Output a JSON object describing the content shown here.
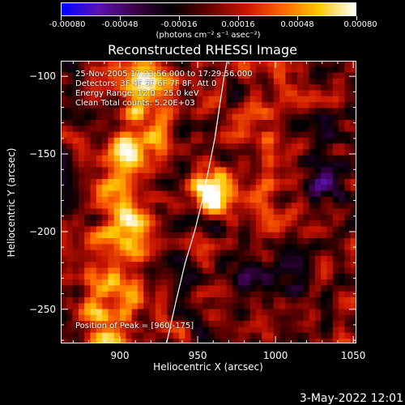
{
  "colorbar": {
    "ticks": [
      "-0.00080",
      "-0.00048",
      "-0.00016",
      "0.00016",
      "0.00048",
      "0.00080"
    ],
    "units": "(photons cm⁻² s⁻¹ asec⁻²)"
  },
  "info": {
    "time": "25-Nov-2005 17:23:56.000 to 17:29:56.000",
    "detectors": "Detectors: 3F 4F 5F 6F 7F 8F, Att 0",
    "energy": "Energy Range: 12.0 - 25.0 keV",
    "clean": "Clean     Total counts: 5.20E+03",
    "peak": "Position of Peak = [960,-175]"
  },
  "timestamp": "3-May-2022 12:01",
  "chart_data": {
    "type": "heatmap",
    "title": "Reconstructed RHESSI Image",
    "xlabel": "Heliocentric X (arcsec)",
    "ylabel": "Heliocentric Y (arcsec)",
    "xlim": [
      862,
      1052
    ],
    "ylim": [
      -272,
      -90
    ],
    "xticks": [
      900,
      950,
      1000,
      1050
    ],
    "yticks": [
      -100,
      -150,
      -200,
      -250
    ],
    "colorbar_range": [
      -0.0008,
      0.0008
    ],
    "colormap": [
      "#0000ff",
      "#5a12b4",
      "#3c0046",
      "#000000",
      "#640000",
      "#c81400",
      "#ff6400",
      "#ffc800",
      "#ffffff"
    ],
    "peak": [
      960,
      -175
    ],
    "limb_curve": [
      [
        930,
        -272
      ],
      [
        936,
        -245
      ],
      [
        942,
        -220
      ],
      [
        948,
        -200
      ],
      [
        953,
        -180
      ],
      [
        957,
        -160
      ],
      [
        961,
        -140
      ],
      [
        964,
        -120
      ],
      [
        967,
        -100
      ],
      [
        969,
        -90
      ]
    ]
  }
}
